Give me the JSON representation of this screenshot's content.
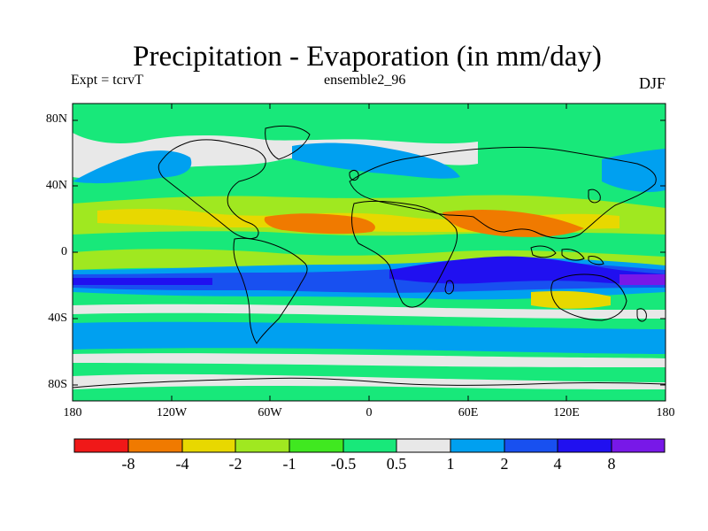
{
  "title": "Precipitation - Evaporation (in mm/day)",
  "experiment_label": "Expt = tcrvT",
  "run_label": "ensemble2_96",
  "season_label": "DJF",
  "latitude_labels": [
    "80N",
    "40N",
    "0",
    "40S",
    "80S"
  ],
  "longitude_labels": [
    "180",
    "120W",
    "60W",
    "0",
    "60E",
    "120E",
    "180"
  ],
  "colorbar": {
    "colors": [
      "#f01818",
      "#f07a00",
      "#e8d800",
      "#a0e820",
      "#40e820",
      "#18e87a",
      "#e8e8e8",
      "#00a0f0",
      "#1850f0",
      "#2010f0",
      "#7818e8"
    ],
    "tick_labels": [
      "-8",
      "-4",
      "-2",
      "-1",
      "-0.5",
      "0.5",
      "1",
      "2",
      "4",
      "8"
    ]
  },
  "map": {
    "projection": "cylindrical-equidistant",
    "lon_range": [
      -180,
      180
    ],
    "lat_range": [
      -90,
      90
    ],
    "background_class": "0.5 to 1 band",
    "coastline_color": "#000000"
  }
}
